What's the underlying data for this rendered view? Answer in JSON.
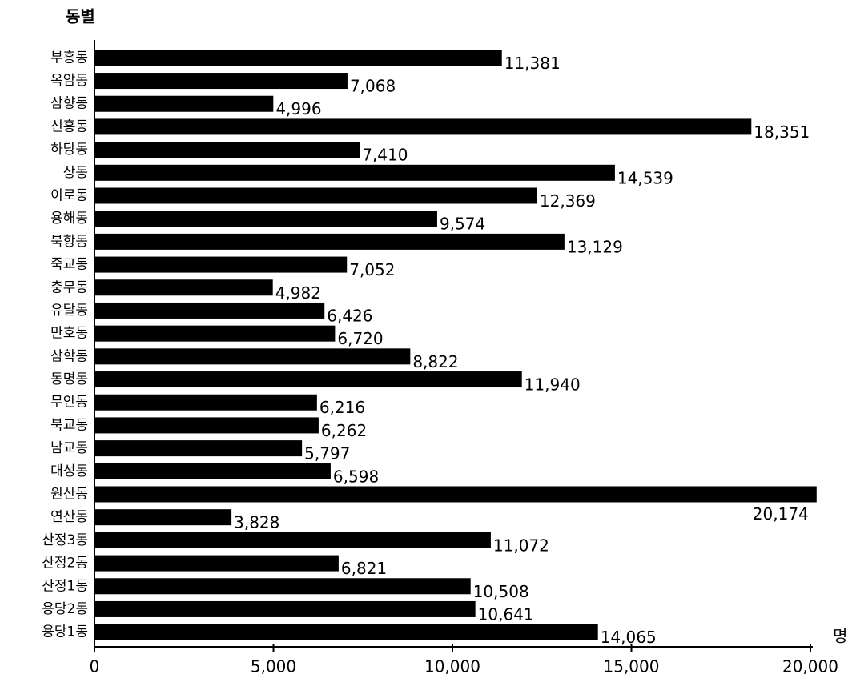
{
  "chart_data": {
    "type": "bar",
    "orientation": "horizontal",
    "title": "동별",
    "x_label": "명",
    "categories": [
      "부흥동",
      "옥암동",
      "삼향동",
      "신흥동",
      "하당동",
      "상동",
      "이로동",
      "용해동",
      "북항동",
      "죽교동",
      "충무동",
      "유달동",
      "만호동",
      "삼학동",
      "동명동",
      "무안동",
      "북교동",
      "남교동",
      "대성동",
      "원산동",
      "연산동",
      "산정3동",
      "산정2동",
      "산정1동",
      "용당2동",
      "용당1동"
    ],
    "values": [
      11381,
      7068,
      4996,
      18351,
      7410,
      14539,
      12369,
      9574,
      13129,
      7052,
      4982,
      6426,
      6720,
      8822,
      11940,
      6216,
      6262,
      5797,
      6598,
      20174,
      3828,
      11072,
      6821,
      10508,
      10641,
      14065
    ],
    "value_labels": [
      "11,381",
      "7,068",
      "4,996",
      "18,351",
      "7,410",
      "14,539",
      "12,369",
      "9,574",
      "13,129",
      "7,052",
      "4,982",
      "6,426",
      "6,720",
      "8,822",
      "11,940",
      "6,216",
      "6,262",
      "5,797",
      "6,598",
      "20,174",
      "3,828",
      "11,072",
      "6,821",
      "10,508",
      "10,641",
      "14,065"
    ],
    "color": "#000000",
    "xlim": [
      0,
      20000
    ],
    "xticks": [
      0,
      {
        "value": 5000,
        "label": "5,000"
      },
      {
        "value": 10000,
        "label": "10,000"
      },
      {
        "value": 15000,
        "label": "15,000"
      },
      {
        "value": 20000,
        "label": "20,000"
      }
    ]
  }
}
